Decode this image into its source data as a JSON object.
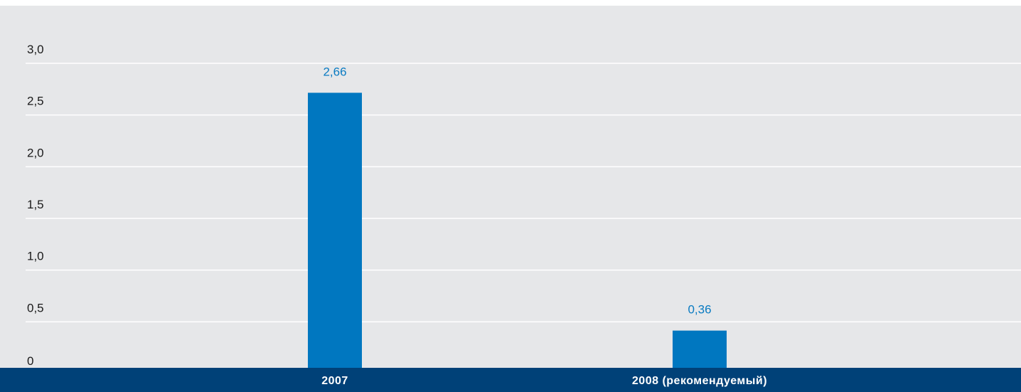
{
  "chart_data": {
    "type": "bar",
    "categories": [
      "2007",
      "2008 (рекомендуемый)"
    ],
    "values": [
      2.66,
      0.36
    ],
    "value_labels": [
      "2,66",
      "0,36"
    ],
    "title": "",
    "xlabel": "",
    "ylabel": "",
    "ylim": [
      0,
      3.0
    ],
    "yticks": [
      0,
      0.5,
      1.0,
      1.5,
      2.0,
      2.5,
      3.0
    ],
    "ytick_labels": [
      "0",
      "0,5",
      "1,0",
      "1,5",
      "2,0",
      "2,5",
      "3,0"
    ],
    "grid": true,
    "legend": "none"
  },
  "colors": {
    "background": "#e6e7e9",
    "gridline": "#ffffff",
    "bar": "#0077c0",
    "value_label": "#0a7bc2",
    "category_band": "#004178",
    "category_text": "#ffffff"
  }
}
